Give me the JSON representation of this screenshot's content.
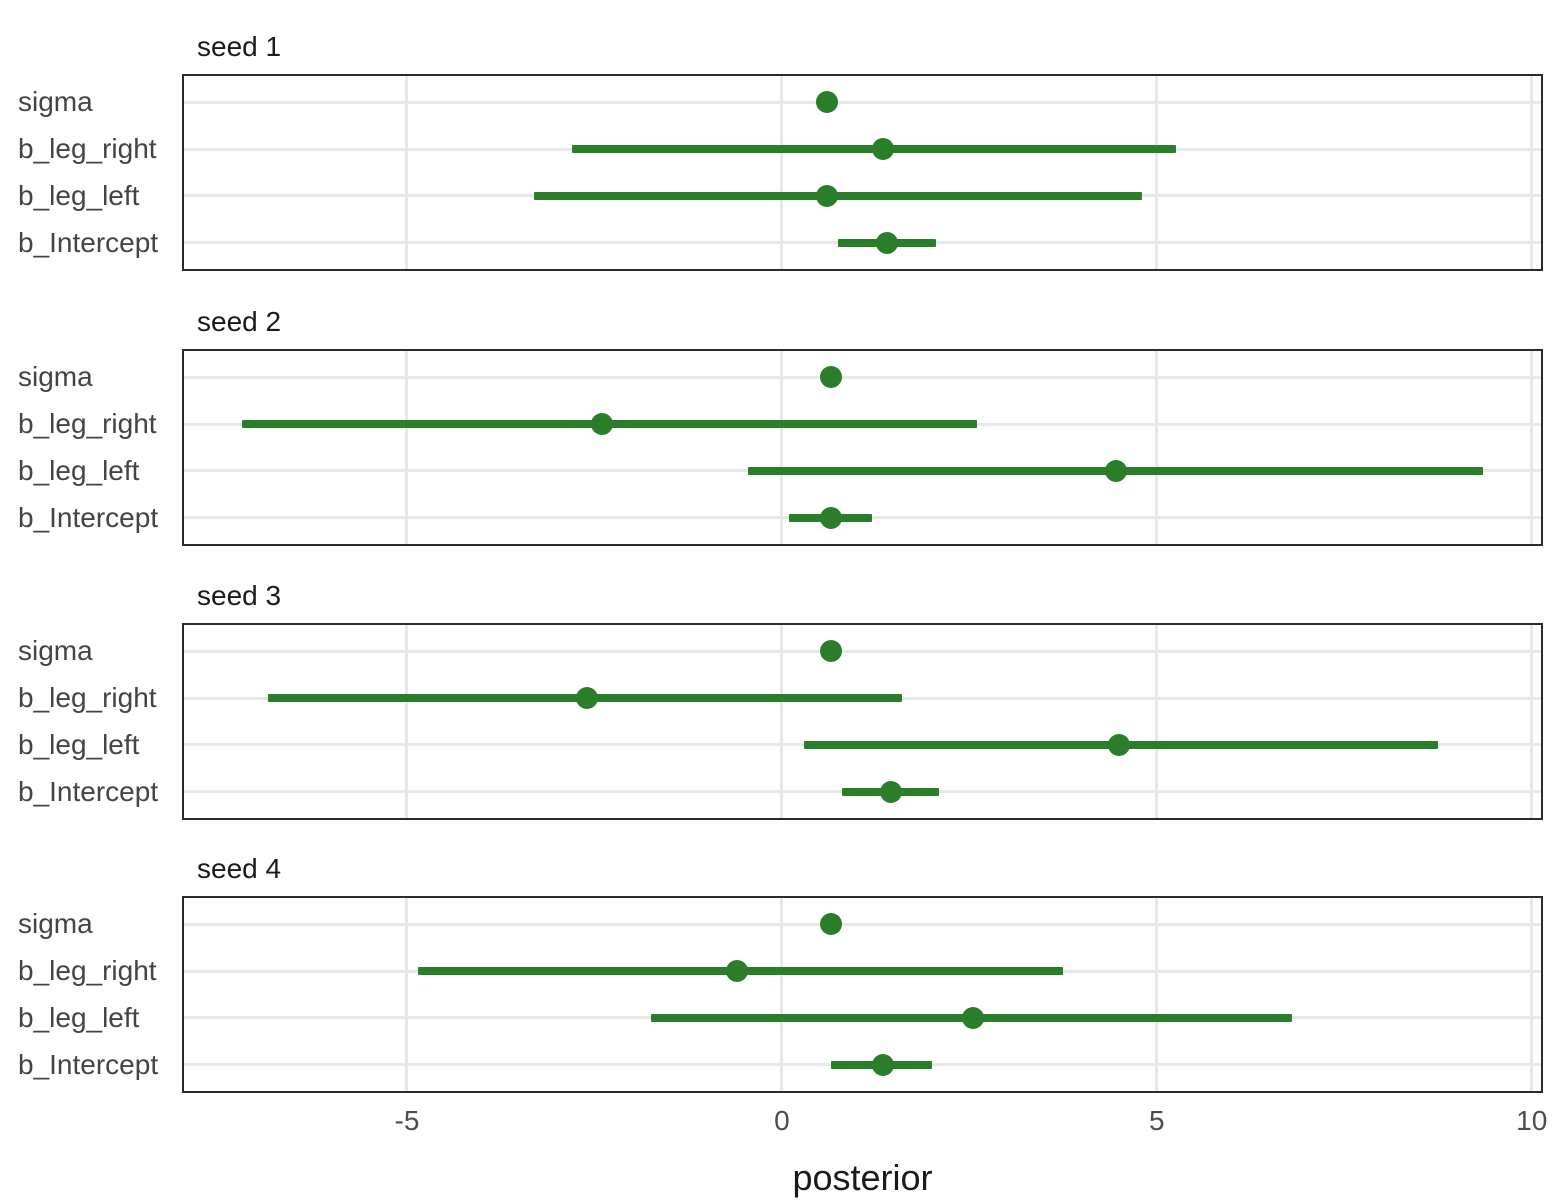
{
  "chart_data": {
    "type": "scatter",
    "subtype": "horizontal point-interval coefficient plot, faceted by seed",
    "title": "",
    "xlabel": "posterior",
    "ylabel": "",
    "x_tick_values": [
      -5,
      0,
      5,
      10
    ],
    "x_tick_labels": [
      "-5",
      "0",
      "5",
      "10"
    ],
    "xlim": [
      -8.0,
      10.15
    ],
    "grid": "major gridlines only, light gray, no axis ticks",
    "legend": "none",
    "interval_color": "#2a7e2a",
    "point_color": "#2a7e2a",
    "categories": [
      "sigma",
      "b_leg_right",
      "b_leg_left",
      "b_Intercept"
    ],
    "facets": [
      {
        "title": "seed 1",
        "rows": [
          {
            "param": "sigma",
            "point": 0.6,
            "lower": 0.6,
            "upper": 0.6
          },
          {
            "param": "b_leg_right",
            "point": 1.35,
            "lower": -2.8,
            "upper": 5.25
          },
          {
            "param": "b_leg_left",
            "point": 0.6,
            "lower": -3.3,
            "upper": 4.8
          },
          {
            "param": "b_Intercept",
            "point": 1.4,
            "lower": 0.75,
            "upper": 2.05
          }
        ]
      },
      {
        "title": "seed 2",
        "rows": [
          {
            "param": "sigma",
            "point": 0.65,
            "lower": 0.65,
            "upper": 0.65
          },
          {
            "param": "b_leg_right",
            "point": -2.4,
            "lower": -7.2,
            "upper": 2.6
          },
          {
            "param": "b_leg_left",
            "point": 4.45,
            "lower": -0.45,
            "upper": 9.35
          },
          {
            "param": "b_Intercept",
            "point": 0.65,
            "lower": 0.1,
            "upper": 1.2
          }
        ]
      },
      {
        "title": "seed 3",
        "rows": [
          {
            "param": "sigma",
            "point": 0.65,
            "lower": 0.65,
            "upper": 0.65
          },
          {
            "param": "b_leg_right",
            "point": -2.6,
            "lower": -6.85,
            "upper": 1.6
          },
          {
            "param": "b_leg_left",
            "point": 4.5,
            "lower": 0.3,
            "upper": 8.75
          },
          {
            "param": "b_Intercept",
            "point": 1.45,
            "lower": 0.8,
            "upper": 2.1
          }
        ]
      },
      {
        "title": "seed 4",
        "rows": [
          {
            "param": "sigma",
            "point": 0.65,
            "lower": 0.65,
            "upper": 0.65
          },
          {
            "param": "b_leg_right",
            "point": -0.6,
            "lower": -4.85,
            "upper": 3.75
          },
          {
            "param": "b_leg_left",
            "point": 2.55,
            "lower": -1.75,
            "upper": 6.8
          },
          {
            "param": "b_Intercept",
            "point": 1.35,
            "lower": 0.65,
            "upper": 2.0
          }
        ]
      }
    ]
  }
}
